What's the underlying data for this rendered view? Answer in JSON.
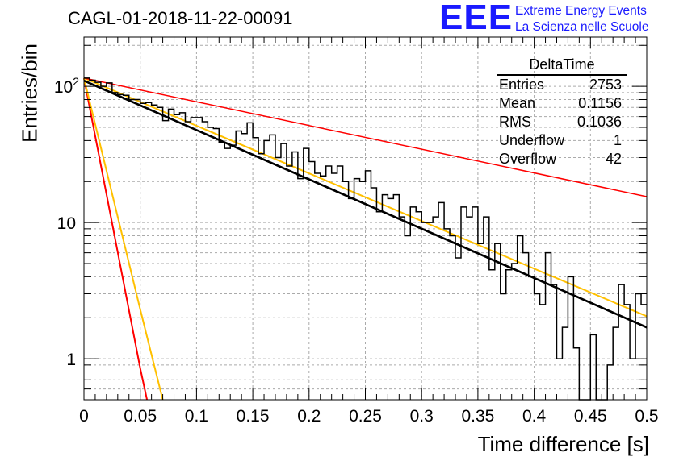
{
  "title": "CAGL-01-2018-11-22-00091",
  "logo": {
    "text": "EEE",
    "line1": "Extreme Energy Events",
    "line2": "La Scienza nelle Scuole",
    "color": "#1a1aff"
  },
  "stats": {
    "title": "DeltaTime",
    "rows": [
      {
        "label": "Entries",
        "value": "2753"
      },
      {
        "label": "Mean",
        "value": "0.1156"
      },
      {
        "label": "RMS",
        "value": "0.1036"
      },
      {
        "label": "Underflow",
        "value": "1"
      },
      {
        "label": "Overflow",
        "value": "42"
      }
    ]
  },
  "chart_data": {
    "type": "line",
    "xlabel": "Time difference [s]",
    "ylabel": "Entries/bin",
    "xlim": [
      0,
      0.5
    ],
    "ylim": [
      0.5,
      230
    ],
    "ylog": true,
    "grid": true,
    "x_ticks": [
      "0",
      "0.05",
      "0.1",
      "0.15",
      "0.2",
      "0.25",
      "0.3",
      "0.35",
      "0.4",
      "0.45",
      "0.5"
    ],
    "y_ticks": [
      {
        "value": 1,
        "label": "1"
      },
      {
        "value": 10,
        "label": "10"
      },
      {
        "value": 100,
        "label": "10",
        "sup": "2"
      }
    ],
    "histogram": {
      "bin_width": 0.005,
      "color": "#000000",
      "values": [
        115,
        111,
        107,
        100,
        106,
        90,
        87,
        86,
        80,
        80,
        75,
        76,
        73,
        70,
        56,
        68,
        62,
        64,
        55,
        59,
        59,
        55,
        50,
        49,
        39,
        35,
        37,
        47,
        45,
        54,
        42,
        32,
        40,
        44,
        30,
        38,
        26,
        33,
        21,
        35,
        28,
        23,
        22,
        26,
        23,
        26,
        20,
        15,
        21,
        20,
        24,
        18,
        12,
        16,
        15,
        16,
        11,
        8,
        13,
        12,
        10,
        10,
        11,
        14,
        9,
        8,
        5.5,
        13,
        11,
        13,
        7,
        11,
        4.5,
        7,
        3,
        4.5,
        5,
        8,
        6,
        4,
        3,
        2.5,
        6,
        3.5,
        1,
        1.7,
        4,
        1.2,
        0.3,
        0.3,
        1.5,
        0.3,
        0.3,
        0.9,
        1.7,
        3.5,
        2.5,
        1,
        3,
        2.5
      ]
    },
    "series": [
      {
        "color": "#000000",
        "width": 2.5,
        "x": [
          0.0,
          0.5
        ],
        "y": [
          110,
          1.7
        ]
      },
      {
        "color": "#ffc000",
        "width": 2,
        "x": [
          0.0,
          0.5
        ],
        "y": [
          115,
          2.05
        ]
      },
      {
        "color": "#ff0000",
        "width": 1.5,
        "x": [
          0.0,
          0.5
        ],
        "y": [
          115,
          15.5
        ]
      },
      {
        "color": "#ff0000",
        "width": 2,
        "x": [
          0.0,
          0.05,
          0.056
        ],
        "y": [
          115,
          0.85,
          0.5
        ]
      },
      {
        "color": "#ffc000",
        "width": 2,
        "x": [
          0.0,
          0.05,
          0.07
        ],
        "y": [
          115,
          2.3,
          0.5
        ]
      }
    ]
  }
}
